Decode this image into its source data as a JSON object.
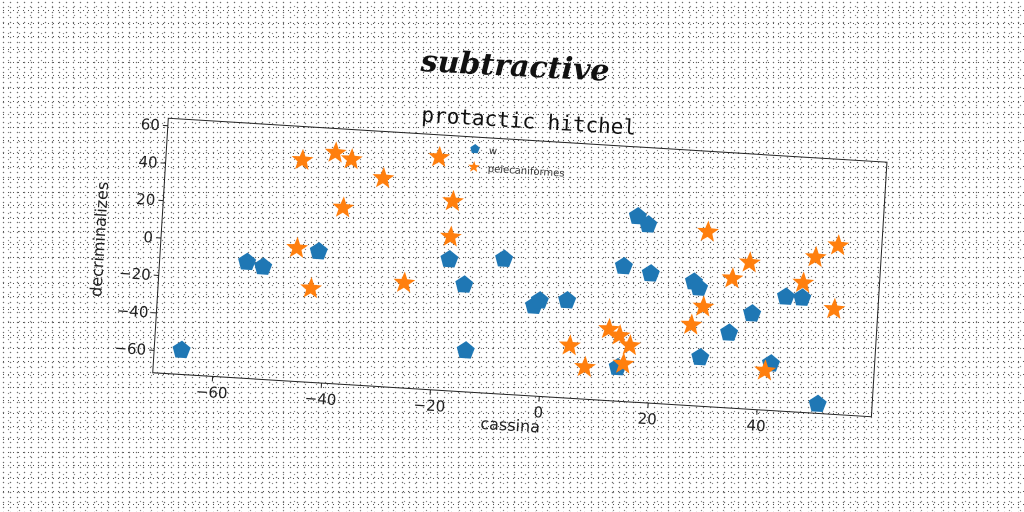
{
  "suptitle": "subtractive",
  "chart_data": {
    "type": "scatter",
    "title": "protactic hitchel",
    "xlabel": "cassina",
    "ylabel": "decriminalizes",
    "xlim": [
      -71,
      61
    ],
    "ylim": [
      -72,
      64
    ],
    "xticks": [
      -60,
      -40,
      -20,
      0,
      20,
      40
    ],
    "yticks": [
      -60,
      -40,
      -20,
      0,
      20,
      40,
      60
    ],
    "grid": false,
    "legend_position": "top-center",
    "series": [
      {
        "name": "w",
        "marker": "pentagon",
        "color": "#1f77b4",
        "points": [
          [
            -66,
            -59
          ],
          [
            -55,
            -10
          ],
          [
            -52,
            -12
          ],
          [
            -42,
            -2
          ],
          [
            -18,
            -2
          ],
          [
            -15,
            -15
          ],
          [
            -14,
            -50
          ],
          [
            -8,
            0
          ],
          [
            -2,
            -24
          ],
          [
            -1,
            -21
          ],
          [
            4,
            -20
          ],
          [
            14,
            0
          ],
          [
            16,
            27
          ],
          [
            18,
            23
          ],
          [
            19,
            -3
          ],
          [
            27,
            -6
          ],
          [
            28,
            -9
          ],
          [
            29,
            -46
          ],
          [
            34,
            -32
          ],
          [
            38,
            -21
          ],
          [
            42,
            -47
          ],
          [
            44,
            -11
          ],
          [
            47,
            -11
          ],
          [
            51,
            -67
          ],
          [
            14,
            -54
          ]
        ]
      },
      {
        "name": "pelecaniformes",
        "marker": "star",
        "color": "#ff7f0e",
        "points": [
          [
            -46,
            46
          ],
          [
            -40,
            51
          ],
          [
            -37,
            48
          ],
          [
            -31,
            39
          ],
          [
            -38,
            22
          ],
          [
            -46,
            -1
          ],
          [
            -43,
            -22
          ],
          [
            -26,
            -16
          ],
          [
            -21,
            52
          ],
          [
            -18,
            29
          ],
          [
            -18,
            10
          ],
          [
            5,
            -44
          ],
          [
            8,
            -55
          ],
          [
            12,
            -34
          ],
          [
            14,
            -37
          ],
          [
            15,
            -52
          ],
          [
            16,
            -42
          ],
          [
            27,
            -29
          ],
          [
            29,
            -19
          ],
          [
            29,
            21
          ],
          [
            34,
            -3
          ],
          [
            37,
            6
          ],
          [
            41,
            -51
          ],
          [
            47,
            -3
          ],
          [
            49,
            11
          ],
          [
            53,
            18
          ],
          [
            53,
            -16
          ]
        ]
      }
    ]
  }
}
